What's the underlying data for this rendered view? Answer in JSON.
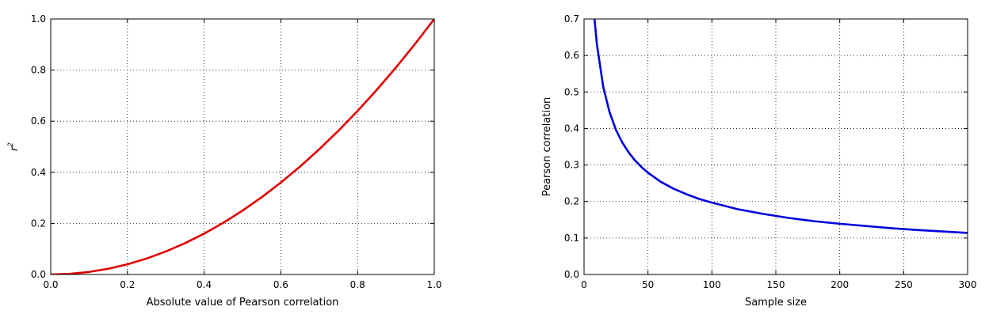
{
  "chart_data": [
    {
      "type": "line",
      "title": "",
      "xlabel": "Absolute value of Pearson correlation",
      "ylabel": "r",
      "ylabel_superscript": "2",
      "xlim": [
        0.0,
        1.0
      ],
      "ylim": [
        0.0,
        1.0
      ],
      "xticks": [
        "0.0",
        "0.2",
        "0.4",
        "0.6",
        "0.8",
        "1.0"
      ],
      "yticks": [
        "0.0",
        "0.2",
        "0.4",
        "0.6",
        "0.8",
        "1.0"
      ],
      "grid": true,
      "series": [
        {
          "color": "#e00000",
          "x": [
            0.0,
            0.05,
            0.1,
            0.15,
            0.2,
            0.25,
            0.3,
            0.35,
            0.4,
            0.45,
            0.5,
            0.55,
            0.6,
            0.65,
            0.7,
            0.75,
            0.8,
            0.85,
            0.9,
            0.95,
            1.0
          ],
          "y": [
            0.0,
            0.0025,
            0.01,
            0.0225,
            0.04,
            0.0625,
            0.09,
            0.1225,
            0.16,
            0.2025,
            0.25,
            0.3025,
            0.36,
            0.4225,
            0.49,
            0.5625,
            0.64,
            0.7225,
            0.81,
            0.9025,
            1.0
          ]
        }
      ]
    },
    {
      "type": "line",
      "title": "",
      "xlabel": "Sample size",
      "ylabel": "Pearson correlation",
      "xlim": [
        0,
        300
      ],
      "ylim": [
        0.0,
        0.7
      ],
      "xticks": [
        "0",
        "50",
        "100",
        "150",
        "200",
        "250",
        "300"
      ],
      "yticks": [
        "0.0",
        "0.1",
        "0.2",
        "0.3",
        "0.4",
        "0.5",
        "0.6",
        "0.7"
      ],
      "grid": true,
      "series": [
        {
          "color": "#0000dd",
          "x": [
            8,
            10,
            15,
            20,
            25,
            30,
            35,
            40,
            45,
            50,
            60,
            70,
            80,
            90,
            100,
            120,
            140,
            160,
            180,
            200,
            220,
            240,
            260,
            280,
            300
          ],
          "y": [
            0.707,
            0.632,
            0.514,
            0.444,
            0.396,
            0.361,
            0.334,
            0.312,
            0.294,
            0.279,
            0.254,
            0.235,
            0.22,
            0.207,
            0.197,
            0.179,
            0.166,
            0.155,
            0.146,
            0.139,
            0.133,
            0.127,
            0.122,
            0.118,
            0.114
          ]
        }
      ]
    }
  ]
}
